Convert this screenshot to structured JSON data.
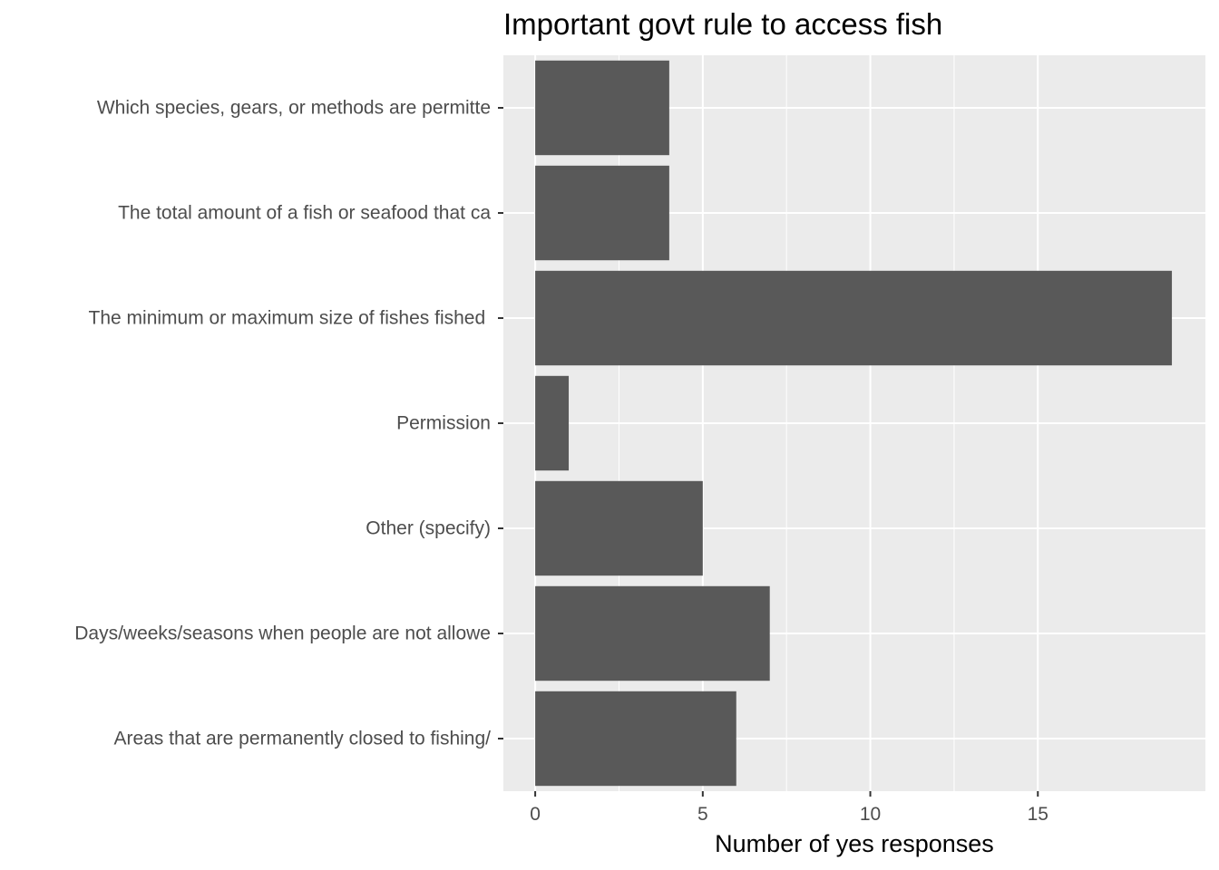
{
  "chart_data": {
    "type": "bar",
    "orientation": "horizontal",
    "title": "Important govt rule to access fish",
    "xlabel": "Number of yes responses",
    "ylabel": "",
    "categories": [
      "Which species, gears, or methods are permitte",
      "The total amount of a fish or seafood that ca",
      "The minimum or maximum size of fishes fished ",
      "Permission",
      "Other (specify)",
      "Days/weeks/seasons when people are not allowe",
      "Areas that are permanently closed to fishing/"
    ],
    "values": [
      4,
      4,
      19,
      1,
      5,
      7,
      6
    ],
    "xlim": [
      -0.95,
      20
    ],
    "xticks": [
      0,
      5,
      10,
      15
    ],
    "grid": true,
    "legend": "none",
    "colors": {
      "bar": "#595959",
      "panel": "#ebebeb",
      "grid": "#ffffff",
      "tick_text": "#4d4d4d",
      "tick_mark": "#333333"
    }
  }
}
